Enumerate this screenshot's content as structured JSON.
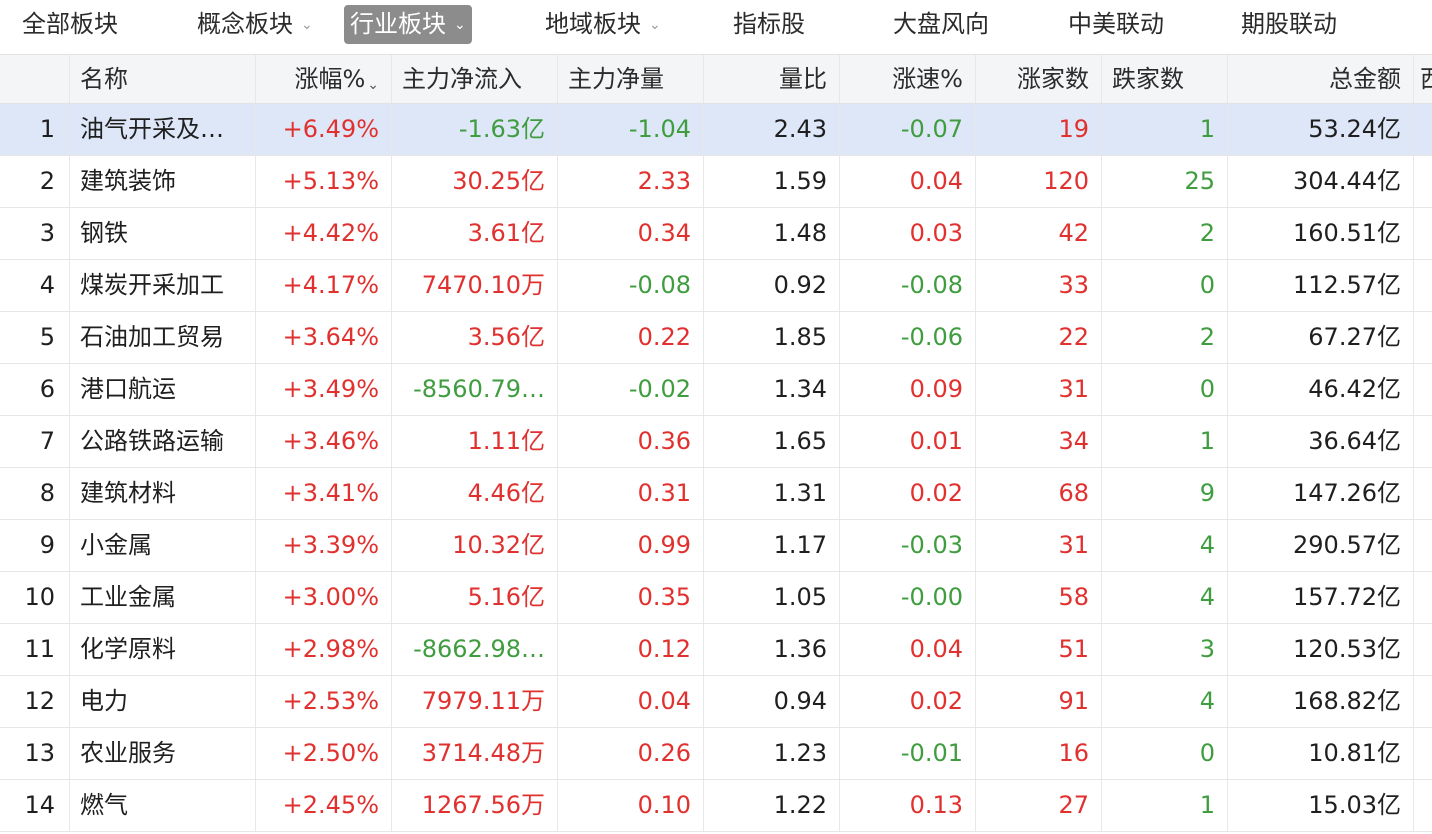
{
  "tabs": [
    {
      "label": "全部板块",
      "dropdown": false,
      "active": false
    },
    {
      "label": "概念板块",
      "dropdown": true,
      "active": false
    },
    {
      "label": "行业板块",
      "dropdown": true,
      "active": true
    },
    {
      "label": "地域板块",
      "dropdown": true,
      "active": false
    },
    {
      "label": "指标股",
      "dropdown": false,
      "active": false
    },
    {
      "label": "大盘风向",
      "dropdown": false,
      "active": false
    },
    {
      "label": "中美联动",
      "dropdown": false,
      "active": false
    },
    {
      "label": "期股联动",
      "dropdown": false,
      "active": false
    }
  ],
  "columns": {
    "name": "名称",
    "change_pct": "涨幅%",
    "main_inflow": "主力净流入",
    "main_net": "主力净量",
    "volume_ratio": "量比",
    "speed": "涨速%",
    "up_count": "涨家数",
    "down_count": "跌家数",
    "total_amount": "总金额",
    "overflow": "西"
  },
  "colors": {
    "up": "#e0312f",
    "down": "#3f9d3f",
    "selected_row": "#dde7f8",
    "active_tab": "#8c8c8c"
  },
  "rows": [
    {
      "idx": "1",
      "name": "油气开采及…",
      "change": "+6.49%",
      "inflow": "-1.63亿",
      "net": "-1.04",
      "vr": "2.43",
      "speed": "-0.07",
      "up": "19",
      "down": "1",
      "amount": "53.24亿"
    },
    {
      "idx": "2",
      "name": "建筑装饰",
      "change": "+5.13%",
      "inflow": "30.25亿",
      "net": "2.33",
      "vr": "1.59",
      "speed": "0.04",
      "up": "120",
      "down": "25",
      "amount": "304.44亿"
    },
    {
      "idx": "3",
      "name": "钢铁",
      "change": "+4.42%",
      "inflow": "3.61亿",
      "net": "0.34",
      "vr": "1.48",
      "speed": "0.03",
      "up": "42",
      "down": "2",
      "amount": "160.51亿"
    },
    {
      "idx": "4",
      "name": "煤炭开采加工",
      "change": "+4.17%",
      "inflow": "7470.10万",
      "net": "-0.08",
      "vr": "0.92",
      "speed": "-0.08",
      "up": "33",
      "down": "0",
      "amount": "112.57亿"
    },
    {
      "idx": "5",
      "name": "石油加工贸易",
      "change": "+3.64%",
      "inflow": "3.56亿",
      "net": "0.22",
      "vr": "1.85",
      "speed": "-0.06",
      "up": "22",
      "down": "2",
      "amount": "67.27亿"
    },
    {
      "idx": "6",
      "name": "港口航运",
      "change": "+3.49%",
      "inflow": "-8560.79…",
      "net": "-0.02",
      "vr": "1.34",
      "speed": "0.09",
      "up": "31",
      "down": "0",
      "amount": "46.42亿"
    },
    {
      "idx": "7",
      "name": "公路铁路运输",
      "change": "+3.46%",
      "inflow": "1.11亿",
      "net": "0.36",
      "vr": "1.65",
      "speed": "0.01",
      "up": "34",
      "down": "1",
      "amount": "36.64亿"
    },
    {
      "idx": "8",
      "name": "建筑材料",
      "change": "+3.41%",
      "inflow": "4.46亿",
      "net": "0.31",
      "vr": "1.31",
      "speed": "0.02",
      "up": "68",
      "down": "9",
      "amount": "147.26亿"
    },
    {
      "idx": "9",
      "name": "小金属",
      "change": "+3.39%",
      "inflow": "10.32亿",
      "net": "0.99",
      "vr": "1.17",
      "speed": "-0.03",
      "up": "31",
      "down": "4",
      "amount": "290.57亿"
    },
    {
      "idx": "10",
      "name": "工业金属",
      "change": "+3.00%",
      "inflow": "5.16亿",
      "net": "0.35",
      "vr": "1.05",
      "speed": "-0.00",
      "up": "58",
      "down": "4",
      "amount": "157.72亿"
    },
    {
      "idx": "11",
      "name": "化学原料",
      "change": "+2.98%",
      "inflow": "-8662.98…",
      "net": "0.12",
      "vr": "1.36",
      "speed": "0.04",
      "up": "51",
      "down": "3",
      "amount": "120.53亿"
    },
    {
      "idx": "12",
      "name": "电力",
      "change": "+2.53%",
      "inflow": "7979.11万",
      "net": "0.04",
      "vr": "0.94",
      "speed": "0.02",
      "up": "91",
      "down": "4",
      "amount": "168.82亿"
    },
    {
      "idx": "13",
      "name": "农业服务",
      "change": "+2.50%",
      "inflow": "3714.48万",
      "net": "0.26",
      "vr": "1.23",
      "speed": "-0.01",
      "up": "16",
      "down": "0",
      "amount": "10.81亿"
    },
    {
      "idx": "14",
      "name": "燃气",
      "change": "+2.45%",
      "inflow": "1267.56万",
      "net": "0.10",
      "vr": "1.22",
      "speed": "0.13",
      "up": "27",
      "down": "1",
      "amount": "15.03亿"
    }
  ]
}
